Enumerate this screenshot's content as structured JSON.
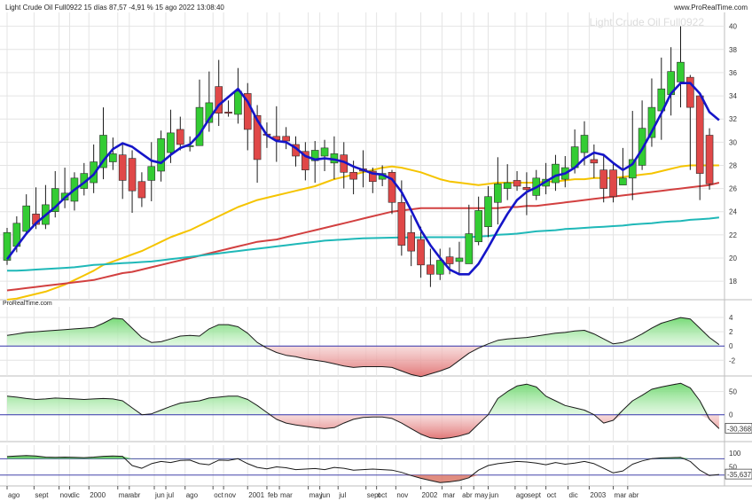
{
  "header": {
    "info": "Light Crude Oil Full0922 15 días 87,57 -4,91 % 15 ago 2022 13:08:40",
    "brand_right": "www.ProRealTime.com",
    "watermark": "Light Crude Oil Full0922",
    "brand_left": "ProRealTime.com"
  },
  "colors": {
    "bg": "#ffffff",
    "grid": "#e4e4e4",
    "up": "#33cc33",
    "down": "#e04848",
    "wick": "#1a1a1a",
    "ma_fast": "#1515c8",
    "ma_yellow": "#f5c400",
    "ma_red": "#d24040",
    "ma_teal": "#1fb8b8",
    "zero_line": "#3333aa",
    "osc_pos": "#99e699",
    "osc_neg": "#e89090",
    "band": "#4444aa"
  },
  "x_axis": {
    "labels": [
      "ago",
      "sept",
      "nov",
      "dic",
      "2000",
      "mar",
      "abr",
      "jun",
      "jul",
      "ago",
      "oct",
      "nov",
      "2001",
      "feb",
      "mar",
      "may",
      "jun",
      "jul",
      "sept",
      "oct",
      "nov",
      "2002",
      "mar",
      "abr",
      "may",
      "jun",
      "ago",
      "sept",
      "oct",
      "dic",
      "2003",
      "mar",
      "abr"
    ],
    "label_index": [
      0,
      2.8,
      5.4,
      6.5,
      8.5,
      11.5,
      12.7,
      15.3,
      16.5,
      18.5,
      21.4,
      22.5,
      25,
      27,
      28.3,
      31.3,
      32.5,
      34.4,
      37.3,
      38.4,
      40.4,
      43,
      45.2,
      47.2,
      48.5,
      50,
      52.8,
      54,
      56,
      58.3,
      60.5,
      63,
      64.5
    ]
  },
  "chart_data": [
    {
      "type": "candlestick",
      "title": "Light Crude Oil Full0922",
      "period": "15 días",
      "ylim": [
        16.4,
        41.2
      ],
      "yticks": [
        18,
        20,
        22,
        24,
        26,
        28,
        30,
        32,
        34,
        36,
        38,
        40
      ],
      "candles": [
        [
          19.8,
          22.2,
          19.4,
          22.6
        ],
        [
          21.0,
          23.0,
          20.5,
          23.6
        ],
        [
          22.3,
          24.5,
          22.0,
          25.5
        ],
        [
          23.8,
          22.9,
          22.5,
          26.1
        ],
        [
          22.9,
          24.6,
          22.5,
          26.3
        ],
        [
          24.0,
          26.0,
          23.5,
          27.5
        ],
        [
          25.0,
          25.6,
          24.3,
          27.8
        ],
        [
          24.9,
          26.9,
          24.1,
          27.4
        ],
        [
          26.0,
          27.3,
          25.4,
          28.2
        ],
        [
          26.5,
          28.3,
          25.6,
          29.8
        ],
        [
          27.8,
          30.6,
          26.8,
          33.0
        ],
        [
          28.3,
          29.0,
          27.6,
          30.4
        ],
        [
          28.9,
          26.7,
          25.1,
          29.9
        ],
        [
          28.6,
          25.8,
          23.9,
          29.3
        ],
        [
          26.6,
          25.2,
          24.4,
          27.4
        ],
        [
          26.7,
          27.9,
          24.9,
          30.0
        ],
        [
          27.5,
          30.3,
          26.6,
          31.0
        ],
        [
          29.1,
          30.8,
          28.2,
          32.8
        ],
        [
          31.1,
          29.8,
          29.3,
          32.2
        ],
        [
          29.7,
          29.7,
          29.2,
          30.5
        ],
        [
          29.7,
          33.0,
          29.7,
          35.4
        ],
        [
          31.7,
          33.4,
          30.9,
          36.1
        ],
        [
          34.8,
          32.5,
          31.4,
          37.1
        ],
        [
          32.6,
          32.5,
          32.2,
          33.6
        ],
        [
          32.4,
          34.4,
          31.6,
          36.4
        ],
        [
          34.2,
          31.1,
          29.3,
          35.1
        ],
        [
          32.3,
          28.5,
          26.5,
          33.2
        ],
        [
          30.7,
          30.6,
          29.5,
          31.7
        ],
        [
          30.5,
          30.2,
          28.3,
          33.1
        ],
        [
          30.5,
          30.1,
          29.4,
          31.3
        ],
        [
          29.8,
          28.8,
          27.9,
          30.5
        ],
        [
          29.2,
          27.6,
          26.7,
          30.0
        ],
        [
          28.4,
          29.3,
          26.5,
          30.1
        ],
        [
          28.8,
          29.5,
          27.5,
          30.2
        ],
        [
          28.2,
          29.0,
          26.8,
          30.5
        ],
        [
          28.9,
          27.4,
          26.0,
          30.0
        ],
        [
          27.4,
          26.8,
          25.5,
          28.4
        ],
        [
          27.7,
          27.5,
          26.1,
          29.3
        ],
        [
          27.5,
          26.6,
          25.6,
          27.8
        ],
        [
          26.8,
          27.3,
          26.2,
          28.0
        ],
        [
          27.4,
          24.8,
          23.8,
          27.6
        ],
        [
          24.8,
          21.1,
          20.2,
          26.7
        ],
        [
          22.2,
          20.6,
          19.3,
          23.7
        ],
        [
          21.6,
          19.4,
          18.3,
          22.7
        ],
        [
          19.4,
          18.6,
          17.5,
          20.8
        ],
        [
          18.6,
          19.8,
          18.1,
          20.8
        ],
        [
          20.1,
          19.5,
          18.6,
          20.9
        ],
        [
          19.7,
          20.0,
          18.6,
          21.4
        ],
        [
          19.5,
          22.1,
          19.5,
          24.6
        ],
        [
          21.4,
          24.1,
          21.1,
          25.3
        ],
        [
          22.7,
          25.3,
          21.8,
          26.2
        ],
        [
          24.8,
          26.4,
          22.9,
          28.7
        ],
        [
          26.0,
          26.5,
          25.0,
          28.1
        ],
        [
          26.7,
          26.2,
          25.8,
          27.5
        ],
        [
          26.1,
          25.9,
          23.7,
          27.4
        ],
        [
          25.4,
          26.9,
          25.0,
          27.6
        ],
        [
          26.2,
          26.8,
          25.5,
          28.2
        ],
        [
          26.5,
          28.1,
          25.8,
          28.9
        ],
        [
          26.8,
          27.8,
          26.1,
          28.8
        ],
        [
          27.8,
          29.6,
          27.3,
          31.1
        ],
        [
          29.1,
          30.6,
          28.0,
          31.8
        ],
        [
          28.5,
          28.2,
          26.9,
          29.8
        ],
        [
          27.6,
          26.0,
          24.8,
          28.9
        ],
        [
          27.6,
          25.3,
          24.8,
          28.3
        ],
        [
          26.3,
          26.9,
          26.3,
          29.5
        ],
        [
          26.9,
          28.5,
          25.0,
          32.7
        ],
        [
          28.0,
          31.2,
          27.6,
          33.6
        ],
        [
          30.4,
          33.0,
          29.6,
          35.5
        ],
        [
          32.7,
          34.6,
          30.2,
          37.3
        ],
        [
          34.1,
          36.1,
          32.3,
          38.2
        ],
        [
          35.2,
          36.9,
          33.0,
          40.0
        ],
        [
          35.6,
          33.0,
          27.6,
          35.8
        ],
        [
          34.0,
          27.3,
          25.0,
          34.3
        ],
        [
          30.6,
          26.4,
          25.9,
          31.2
        ]
      ],
      "series": [
        {
          "name": "ma_fast",
          "values": [
            19.9,
            21.0,
            22.1,
            23.0,
            23.7,
            24.4,
            25.2,
            25.9,
            26.5,
            27.2,
            28.4,
            29.4,
            29.9,
            29.6,
            29.0,
            28.4,
            28.2,
            28.9,
            29.5,
            29.8,
            30.7,
            32.0,
            33.2,
            33.9,
            34.6,
            33.5,
            31.9,
            30.6,
            30.1,
            30.0,
            29.5,
            28.8,
            28.5,
            28.6,
            28.5,
            28.3,
            27.9,
            27.6,
            27.3,
            27.2,
            26.8,
            25.7,
            24.1,
            22.4,
            21.1,
            20.0,
            19.0,
            18.6,
            18.6,
            19.5,
            20.9,
            22.4,
            23.8,
            25.0,
            25.7,
            26.1,
            26.6,
            27.1,
            27.3,
            27.8,
            28.6,
            29.1,
            28.9,
            28.2,
            27.6,
            28.1,
            29.4,
            30.9,
            32.5,
            34.2,
            35.1,
            35.1,
            34.2,
            32.6,
            31.9
          ]
        },
        {
          "name": "ma_yellow",
          "values": [
            16.4,
            16.5,
            16.7,
            16.9,
            17.1,
            17.4,
            17.7,
            18.1,
            18.5,
            18.9,
            19.4,
            19.7,
            20.0,
            20.3,
            20.6,
            21.0,
            21.4,
            21.8,
            22.1,
            22.4,
            22.8,
            23.2,
            23.6,
            24.0,
            24.4,
            24.7,
            25.0,
            25.2,
            25.4,
            25.6,
            25.8,
            26.0,
            26.2,
            26.5,
            26.8,
            27.0,
            27.2,
            27.4,
            27.6,
            27.8,
            27.9,
            27.8,
            27.6,
            27.4,
            27.1,
            26.8,
            26.6,
            26.5,
            26.4,
            26.3,
            26.4,
            26.5,
            26.5,
            26.5,
            26.5,
            26.5,
            26.6,
            26.6,
            26.7,
            26.8,
            26.8,
            26.9,
            26.9,
            26.9,
            27.0,
            27.1,
            27.2,
            27.3,
            27.5,
            27.7,
            27.9,
            28.0,
            28.0,
            28.0,
            28.0
          ]
        },
        {
          "name": "ma_red",
          "values": [
            17.2,
            17.3,
            17.4,
            17.5,
            17.6,
            17.7,
            17.8,
            17.9,
            18.0,
            18.1,
            18.3,
            18.5,
            18.7,
            18.8,
            19.0,
            19.2,
            19.4,
            19.6,
            19.8,
            20.0,
            20.2,
            20.4,
            20.6,
            20.8,
            21.0,
            21.2,
            21.4,
            21.5,
            21.6,
            21.8,
            22.0,
            22.2,
            22.4,
            22.6,
            22.8,
            23.0,
            23.2,
            23.4,
            23.6,
            23.8,
            24.0,
            24.1,
            24.2,
            24.3,
            24.3,
            24.3,
            24.3,
            24.3,
            24.3,
            24.3,
            24.3,
            24.3,
            24.4,
            24.4,
            24.5,
            24.5,
            24.6,
            24.7,
            24.8,
            24.9,
            25.0,
            25.1,
            25.2,
            25.3,
            25.4,
            25.5,
            25.6,
            25.7,
            25.8,
            25.9,
            26.0,
            26.1,
            26.2,
            26.3,
            26.5
          ]
        },
        {
          "name": "ma_teal",
          "values": [
            18.9,
            18.9,
            18.95,
            19.0,
            19.05,
            19.1,
            19.15,
            19.2,
            19.3,
            19.4,
            19.45,
            19.5,
            19.55,
            19.6,
            19.65,
            19.7,
            19.8,
            19.9,
            20.0,
            20.1,
            20.2,
            20.3,
            20.4,
            20.5,
            20.6,
            20.7,
            20.8,
            20.9,
            21.0,
            21.1,
            21.2,
            21.3,
            21.4,
            21.5,
            21.55,
            21.6,
            21.65,
            21.7,
            21.72,
            21.74,
            21.76,
            21.77,
            21.78,
            21.79,
            21.8,
            21.8,
            21.8,
            21.8,
            21.8,
            21.85,
            21.9,
            22.0,
            22.05,
            22.1,
            22.2,
            22.3,
            22.35,
            22.4,
            22.5,
            22.55,
            22.6,
            22.65,
            22.7,
            22.75,
            22.8,
            22.9,
            22.95,
            23.0,
            23.1,
            23.15,
            23.2,
            23.3,
            23.35,
            23.4,
            23.5
          ]
        }
      ]
    },
    {
      "type": "area",
      "name": "oscillator-1",
      "ylim": [
        -4.2,
        5.5
      ],
      "yticks": [
        4,
        2,
        0,
        -2
      ],
      "values": [
        1.5,
        1.7,
        1.9,
        2.0,
        2.1,
        2.2,
        2.3,
        2.4,
        2.5,
        2.6,
        3.2,
        3.9,
        3.8,
        2.5,
        1.2,
        0.5,
        0.6,
        1.0,
        1.4,
        1.5,
        1.4,
        2.4,
        3.0,
        3.0,
        2.7,
        1.8,
        0.5,
        -0.3,
        -0.9,
        -1.3,
        -1.5,
        -1.8,
        -2.0,
        -2.2,
        -2.5,
        -2.8,
        -3.0,
        -2.9,
        -2.9,
        -2.9,
        -3.0,
        -3.5,
        -4.0,
        -4.3,
        -3.9,
        -3.5,
        -3.0,
        -2.0,
        -1.0,
        -0.3,
        0.3,
        0.8,
        1.0,
        1.1,
        1.2,
        1.4,
        1.6,
        1.8,
        1.9,
        2.1,
        2.2,
        1.7,
        1.0,
        0.3,
        0.5,
        1.0,
        1.7,
        2.5,
        3.2,
        3.6,
        4.0,
        3.8,
        2.5,
        1.2,
        0.2
      ]
    },
    {
      "type": "area",
      "name": "oscillator-2",
      "ylim": [
        -58,
        76
      ],
      "yticks": [
        50,
        0
      ],
      "last_value_label": "-30,368",
      "values": [
        40,
        38,
        35,
        33,
        34,
        36,
        35,
        34,
        33,
        34,
        35,
        34,
        30,
        15,
        0,
        2,
        10,
        18,
        25,
        28,
        30,
        36,
        38,
        40,
        40,
        33,
        20,
        5,
        -10,
        -18,
        -22,
        -25,
        -28,
        -30,
        -28,
        -18,
        -10,
        -6,
        -5,
        -5,
        -8,
        -18,
        -30,
        -42,
        -50,
        -52,
        -50,
        -46,
        -40,
        -20,
        0,
        35,
        50,
        62,
        66,
        60,
        40,
        30,
        20,
        15,
        10,
        0,
        -18,
        -12,
        10,
        30,
        42,
        55,
        60,
        64,
        68,
        58,
        30,
        -10,
        -30
      ]
    },
    {
      "type": "line",
      "name": "oscillator-3",
      "ylim": [
        -20,
        130
      ],
      "yticks": [
        100,
        50
      ],
      "last_value_label": "-35,637",
      "bands": [
        80,
        20
      ],
      "values": [
        88,
        90,
        92,
        90,
        86,
        85,
        86,
        85,
        84,
        86,
        89,
        90,
        89,
        55,
        45,
        62,
        70,
        66,
        74,
        75,
        62,
        58,
        75,
        74,
        80,
        62,
        48,
        43,
        50,
        47,
        40,
        42,
        44,
        40,
        48,
        45,
        38,
        40,
        42,
        40,
        38,
        30,
        18,
        8,
        0,
        -8,
        -5,
        0,
        10,
        38,
        55,
        62,
        66,
        70,
        68,
        64,
        58,
        66,
        60,
        64,
        70,
        62,
        45,
        28,
        35,
        60,
        72,
        80,
        83,
        84,
        85,
        70,
        38,
        18,
        22
      ]
    }
  ]
}
